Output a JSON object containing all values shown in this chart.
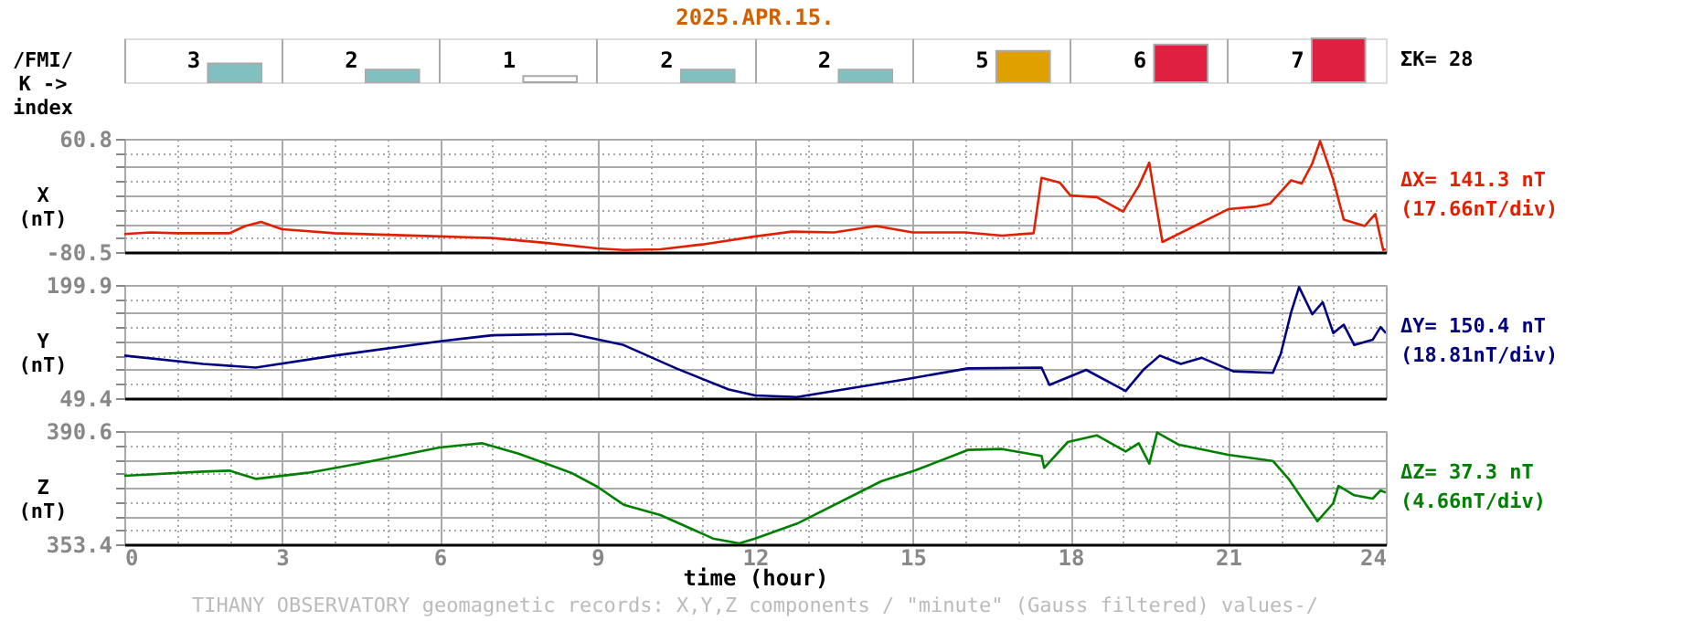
{
  "chart_data": [
    {
      "type": "bar",
      "title": "2025.APR.15.",
      "ylabel": "/FMI/\nK ->\nindex",
      "categories": [
        null,
        null,
        null,
        null,
        null,
        null,
        null,
        null
      ],
      "values": [
        3,
        2,
        1,
        2,
        2,
        5,
        6,
        7
      ],
      "colors": [
        "#80c0c0",
        "#80c0c0",
        "#ffffff",
        "#80c0c0",
        "#80c0c0",
        "#e0a000",
        "#e02040",
        "#e02040"
      ],
      "data_labels": true,
      "grid": "x",
      "tick_labels": false,
      "annotations": [
        "ΣK= 28"
      ]
    },
    {
      "type": "line",
      "ylabel": "X\n(nT)",
      "color": "#e02000",
      "x": [
        0,
        0.5,
        1.0,
        2.0,
        2.3,
        2.6,
        3.0,
        4.0,
        5.0,
        6.0,
        7.0,
        8.0,
        9.0,
        9.5,
        10.2,
        11.0,
        12.0,
        12.7,
        13.5,
        14.3,
        15.0,
        16.0,
        16.7,
        17.3,
        17.45,
        17.8,
        18.0,
        18.5,
        19.0,
        19.3,
        19.5,
        19.6,
        19.75,
        20.3,
        21.0,
        21.5,
        21.8,
        22.2,
        22.4,
        22.6,
        22.75,
        23.0,
        23.2,
        23.6,
        23.8,
        23.95,
        24.0
      ],
      "values": [
        -58,
        -56,
        -57,
        -57,
        -48,
        -43,
        -52,
        -57,
        -59,
        -61,
        -63,
        -69,
        -76,
        -78,
        -77,
        -71,
        -61,
        -55,
        -56,
        -48,
        -56,
        -56,
        -60,
        -57,
        12,
        6,
        -10,
        -12,
        -30,
        2,
        31,
        -10,
        -68,
        -50,
        -27,
        -24,
        -20,
        9,
        5,
        30,
        58,
        10,
        -40,
        -48,
        -33,
        -78,
        -77
      ],
      "xlim": [
        0,
        24
      ],
      "xticks": [
        0,
        {
          "value": 1,
          "label": null
        },
        {
          "value": 2,
          "label": null
        },
        3,
        {
          "value": 4,
          "label": null
        },
        {
          "value": 5,
          "label": null
        },
        6,
        {
          "value": 7,
          "label": null
        },
        {
          "value": 8,
          "label": null
        },
        9,
        {
          "value": 10,
          "label": null
        },
        {
          "value": 11,
          "label": null
        },
        12,
        {
          "value": 13,
          "label": null
        },
        {
          "value": 14,
          "label": null
        },
        15,
        {
          "value": 16,
          "label": null
        },
        {
          "value": 17,
          "label": null
        },
        18,
        {
          "value": 19,
          "label": null
        },
        {
          "value": 20,
          "label": null
        },
        21,
        {
          "value": 22,
          "label": null
        },
        {
          "value": 23,
          "label": null
        },
        24
      ],
      "ylim": [
        -80.5,
        60.8
      ],
      "yticks": [
        60.8,
        {
          "value": 43.14,
          "label": null
        },
        {
          "value": 25.48,
          "label": null
        },
        {
          "value": 7.81,
          "label": null
        },
        {
          "value": -9.85,
          "label": null
        },
        {
          "value": -27.51,
          "label": null
        },
        {
          "value": -45.18,
          "label": null
        },
        {
          "value": -62.84,
          "label": null
        },
        -80.5
      ],
      "grid": true,
      "tick_labels": "y",
      "annotations": [
        "ΔX= 141.3 nT",
        "(17.66nT/div)"
      ]
    },
    {
      "type": "line",
      "ylabel": "Y\n(nT)",
      "color": "#000080",
      "x": [
        0,
        1.5,
        2.5,
        4.0,
        6.0,
        7.0,
        8.5,
        9.5,
        10.5,
        11.5,
        12.0,
        12.8,
        14.9,
        16.05,
        17.45,
        17.6,
        18.3,
        19.05,
        19.4,
        19.7,
        20.1,
        20.5,
        21.1,
        21.85,
        22.0,
        22.2,
        22.35,
        22.6,
        22.8,
        23.0,
        23.2,
        23.4,
        23.75,
        23.9,
        24.0
      ],
      "values": [
        106,
        95,
        90,
        106,
        125,
        133,
        135,
        120,
        89,
        61,
        53,
        51,
        75,
        89,
        90,
        67,
        87,
        59,
        88,
        106,
        95,
        103,
        85,
        83,
        108,
        164,
        197,
        161,
        177,
        136,
        147,
        120,
        127,
        144,
        136
      ],
      "xlim": [
        0,
        24
      ],
      "xticks": [
        0,
        {
          "value": 1,
          "label": null
        },
        {
          "value": 2,
          "label": null
        },
        3,
        {
          "value": 4,
          "label": null
        },
        {
          "value": 5,
          "label": null
        },
        6,
        {
          "value": 7,
          "label": null
        },
        {
          "value": 8,
          "label": null
        },
        9,
        {
          "value": 10,
          "label": null
        },
        {
          "value": 11,
          "label": null
        },
        12,
        {
          "value": 13,
          "label": null
        },
        {
          "value": 14,
          "label": null
        },
        15,
        {
          "value": 16,
          "label": null
        },
        {
          "value": 17,
          "label": null
        },
        18,
        {
          "value": 19,
          "label": null
        },
        {
          "value": 20,
          "label": null
        },
        21,
        {
          "value": 22,
          "label": null
        },
        {
          "value": 23,
          "label": null
        },
        24
      ],
      "ylim": [
        49.4,
        199.9
      ],
      "yticks": [
        199.9,
        {
          "value": 181.09,
          "label": null
        },
        {
          "value": 162.28,
          "label": null
        },
        {
          "value": 143.46,
          "label": null
        },
        {
          "value": 124.65,
          "label": null
        },
        {
          "value": 105.84,
          "label": null
        },
        {
          "value": 87.03,
          "label": null
        },
        {
          "value": 68.21,
          "label": null
        },
        49.4
      ],
      "grid": true,
      "tick_labels": "y",
      "annotations": [
        "ΔY= 150.4 nT",
        "(18.81nT/div)"
      ]
    },
    {
      "type": "line",
      "ylabel": "Z\n(nT)",
      "xlabel": "time (hour)",
      "color": "#008000",
      "x": [
        0,
        1.5,
        2.0,
        2.5,
        3.5,
        4.5,
        6.0,
        6.8,
        7.5,
        8.5,
        9.0,
        9.5,
        10.2,
        11.2,
        11.7,
        12.0,
        12.8,
        14.4,
        15.05,
        16.05,
        16.7,
        17.45,
        17.5,
        17.95,
        18.5,
        19.05,
        19.3,
        19.5,
        19.65,
        20.05,
        21.0,
        21.85,
        22.15,
        22.7,
        23.0,
        23.1,
        23.4,
        23.75,
        23.9,
        24.0
      ],
      "values": [
        375.9,
        377.3,
        377.6,
        374.9,
        376.9,
        380.0,
        385.2,
        386.6,
        383.2,
        376.9,
        372.3,
        366.4,
        363.0,
        355.3,
        353.7,
        355.3,
        360.2,
        374.1,
        377.7,
        384.4,
        384.7,
        382.4,
        378.5,
        387.0,
        389.2,
        383.9,
        386.6,
        379.9,
        390.1,
        386.2,
        382.8,
        380.8,
        374.9,
        361.0,
        366.9,
        372.6,
        369.5,
        368.4,
        371.1,
        370.4
      ],
      "xlim": [
        0,
        24
      ],
      "xticks": [
        0,
        {
          "value": 1,
          "label": null
        },
        {
          "value": 2,
          "label": null
        },
        3,
        {
          "value": 4,
          "label": null
        },
        {
          "value": 5,
          "label": null
        },
        6,
        {
          "value": 7,
          "label": null
        },
        {
          "value": 8,
          "label": null
        },
        9,
        {
          "value": 10,
          "label": null
        },
        {
          "value": 11,
          "label": null
        },
        12,
        {
          "value": 13,
          "label": null
        },
        {
          "value": 14,
          "label": null
        },
        15,
        {
          "value": 16,
          "label": null
        },
        {
          "value": 17,
          "label": null
        },
        18,
        {
          "value": 19,
          "label": null
        },
        {
          "value": 20,
          "label": null
        },
        21,
        {
          "value": 22,
          "label": null
        },
        {
          "value": 23,
          "label": null
        },
        24
      ],
      "ylim": [
        353.4,
        390.6
      ],
      "yticks": [
        390.6,
        {
          "value": 385.95,
          "label": null
        },
        {
          "value": 381.3,
          "label": null
        },
        {
          "value": 376.65,
          "label": null
        },
        {
          "value": 372.0,
          "label": null
        },
        {
          "value": 367.35,
          "label": null
        },
        {
          "value": 362.7,
          "label": null
        },
        {
          "value": 358.05,
          "label": null
        },
        353.4
      ],
      "grid": true,
      "annotations": [
        "ΔZ= 37.3 nT",
        "(4.66nT/div)",
        "TIHANY OBSERVATORY  geomagnetic records:  X,Y,Z  components  / \"minute\" (Gauss filtered) values-/"
      ]
    }
  ]
}
